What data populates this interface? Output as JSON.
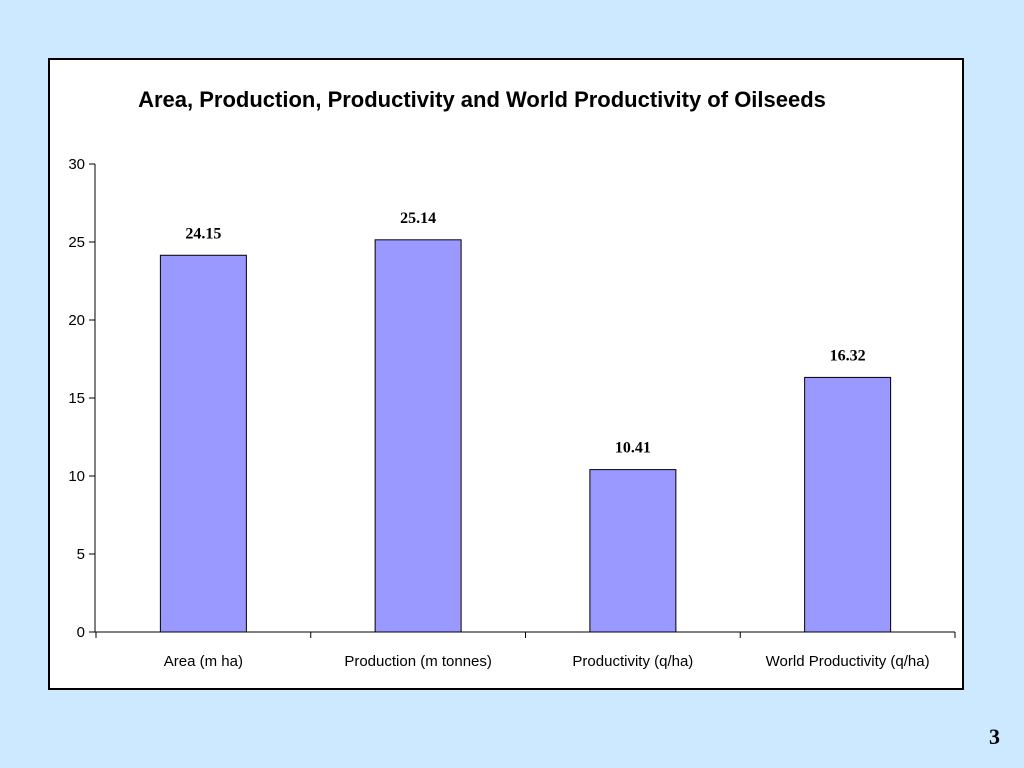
{
  "slide": {
    "background": "#cce9ff",
    "page_number": "3"
  },
  "chart_data": {
    "type": "bar",
    "title": "Area, Production, Productivity and World Productivity of Oilseeds",
    "categories": [
      "Area (m ha)",
      "Production (m tonnes)",
      "Productivity (q/ha)",
      "World Productivity (q/ha)"
    ],
    "values": [
      24.15,
      25.14,
      10.41,
      16.32
    ],
    "value_labels": [
      "24.15",
      "25.14",
      "10.41",
      "16.32"
    ],
    "yticks": [
      "0",
      "5",
      "10",
      "15",
      "20",
      "25",
      "30"
    ],
    "ylim": [
      0,
      30
    ],
    "xlabel": "",
    "ylabel": "",
    "grid": false,
    "legend": "none",
    "colors": {
      "bar_fill": "#9999ff",
      "bar_stroke": "#000000",
      "axis": "#000000"
    }
  }
}
